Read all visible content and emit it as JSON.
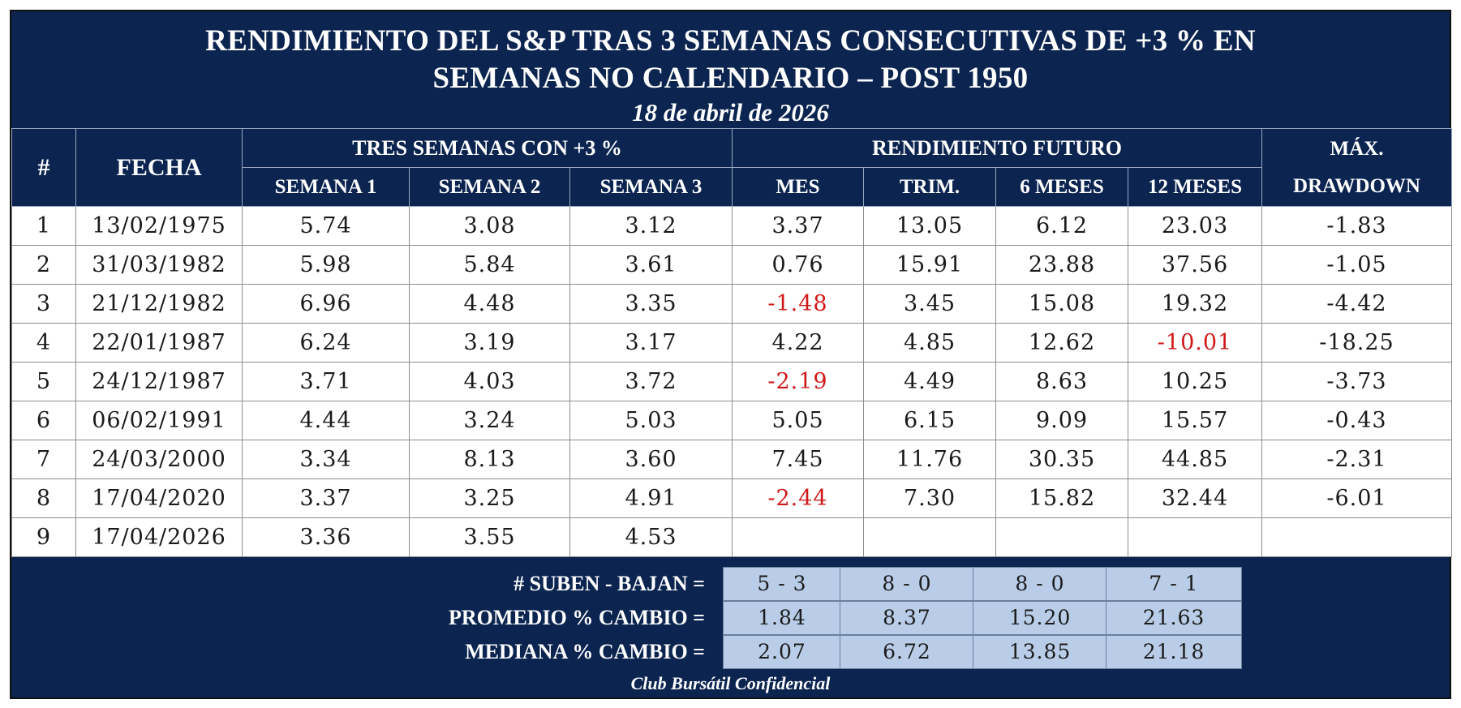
{
  "title_line1": "RENDIMIENTO DEL S&P TRAS 3 SEMANAS CONSECUTIVAS DE +3 % EN",
  "title_line2": "SEMANAS NO CALENDARIO – POST 1950",
  "subtitle": "18 de abril de 2026",
  "headers": {
    "num": "#",
    "date": "FECHA",
    "group_weeks": "TRES SEMANAS CON +3 %",
    "group_future": "RENDIMIENTO FUTURO",
    "max_line1": "MÁX.",
    "max_line2": "DRAWDOWN",
    "week1": "SEMANA 1",
    "week2": "SEMANA 2",
    "week3": "SEMANA 3",
    "month": "MES",
    "quarter": "TRIM.",
    "six_months": "6 MESES",
    "twelve_months": "12 MESES"
  },
  "colors": {
    "navy": "#0b2450",
    "negative": "#d01818",
    "summary_fill": "#b9cde8"
  },
  "chart_data": {
    "type": "table",
    "columns": [
      "#",
      "FECHA",
      "SEMANA 1",
      "SEMANA 2",
      "SEMANA 3",
      "MES",
      "TRIM.",
      "6 MESES",
      "12 MESES",
      "MÁX. DRAWDOWN"
    ],
    "rows": [
      [
        "1",
        "13/02/1975",
        "5.74",
        "3.08",
        "3.12",
        "3.37",
        "13.05",
        "6.12",
        "23.03",
        "-1.83"
      ],
      [
        "2",
        "31/03/1982",
        "5.98",
        "5.84",
        "3.61",
        "0.76",
        "15.91",
        "23.88",
        "37.56",
        "-1.05"
      ],
      [
        "3",
        "21/12/1982",
        "6.96",
        "4.48",
        "3.35",
        "-1.48",
        "3.45",
        "15.08",
        "19.32",
        "-4.42"
      ],
      [
        "4",
        "22/01/1987",
        "6.24",
        "3.19",
        "3.17",
        "4.22",
        "4.85",
        "12.62",
        "-10.01",
        "-18.25"
      ],
      [
        "5",
        "24/12/1987",
        "3.71",
        "4.03",
        "3.72",
        "-2.19",
        "4.49",
        "8.63",
        "10.25",
        "-3.73"
      ],
      [
        "6",
        "06/02/1991",
        "4.44",
        "3.24",
        "5.03",
        "5.05",
        "6.15",
        "9.09",
        "15.57",
        "-0.43"
      ],
      [
        "7",
        "24/03/2000",
        "3.34",
        "8.13",
        "3.60",
        "7.45",
        "11.76",
        "30.35",
        "44.85",
        "-2.31"
      ],
      [
        "8",
        "17/04/2020",
        "3.37",
        "3.25",
        "4.91",
        "-2.44",
        "7.30",
        "15.82",
        "32.44",
        "-6.01"
      ],
      [
        "9",
        "17/04/2026",
        "3.36",
        "3.55",
        "4.53",
        "",
        "",
        "",
        "",
        ""
      ]
    ],
    "highlighted_negative_columns": [
      "MES",
      "TRIM.",
      "6 MESES",
      "12 MESES"
    ],
    "summary": [
      {
        "label": "# SUBEN - BAJAN =",
        "values": [
          "5 - 3",
          "8 - 0",
          "8 - 0",
          "7 - 1"
        ]
      },
      {
        "label": "PROMEDIO % CAMBIO =",
        "values": [
          "1.84",
          "8.37",
          "15.20",
          "21.63"
        ]
      },
      {
        "label": "MEDIANA % CAMBIO =",
        "values": [
          "2.07",
          "6.72",
          "13.85",
          "21.18"
        ]
      }
    ]
  },
  "footer": "Club Bursátil Confidencial"
}
